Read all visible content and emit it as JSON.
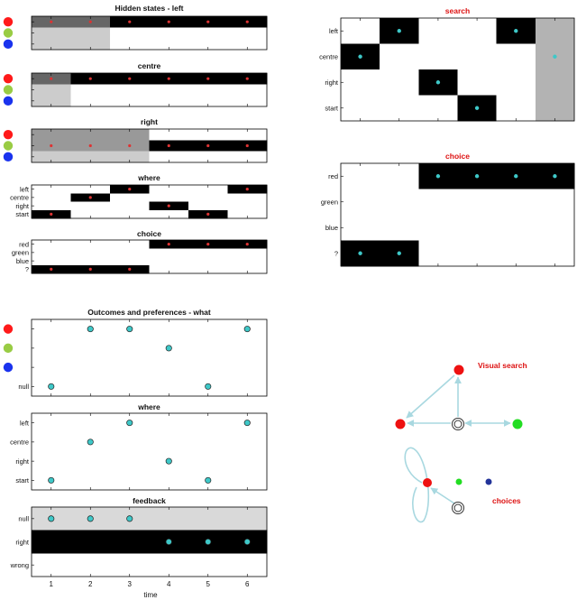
{
  "chart_data": [
    {
      "id": "hidden_left",
      "type": "heatmap",
      "title": "Hidden states - left",
      "x": [
        1,
        2,
        3,
        4,
        5,
        6
      ],
      "rows": [
        "red",
        "green",
        "blue"
      ],
      "row_markers": [
        "#ff1a1a",
        "#99cc44",
        "#1a33ee"
      ],
      "xlim": [
        0.5,
        6.5
      ],
      "values": [
        [
          0.6,
          0.6,
          1,
          1,
          1,
          1
        ],
        [
          0.2,
          0.2,
          0,
          0,
          0,
          0
        ],
        [
          0.2,
          0.2,
          0,
          0,
          0,
          0
        ]
      ],
      "dots": [
        [
          1,
          0
        ],
        [
          2,
          0
        ],
        [
          3,
          0
        ],
        [
          4,
          0
        ],
        [
          5,
          0
        ],
        [
          6,
          0
        ]
      ],
      "dot_color": "#d33"
    },
    {
      "id": "hidden_centre",
      "type": "heatmap",
      "title": "centre",
      "x": [
        1,
        2,
        3,
        4,
        5,
        6
      ],
      "rows": [
        "red",
        "green",
        "blue"
      ],
      "row_markers": [
        "#ff1a1a",
        "#99cc44",
        "#1a33ee"
      ],
      "xlim": [
        0.5,
        6.5
      ],
      "values": [
        [
          0.6,
          1,
          1,
          1,
          1,
          1
        ],
        [
          0.2,
          0,
          0,
          0,
          0,
          0
        ],
        [
          0.2,
          0,
          0,
          0,
          0,
          0
        ]
      ],
      "dots": [
        [
          1,
          0
        ],
        [
          2,
          0
        ],
        [
          3,
          0
        ],
        [
          4,
          0
        ],
        [
          5,
          0
        ],
        [
          6,
          0
        ]
      ],
      "dot_color": "#d33"
    },
    {
      "id": "hidden_right",
      "type": "heatmap",
      "title": "right",
      "x": [
        1,
        2,
        3,
        4,
        5,
        6
      ],
      "rows": [
        "red",
        "green",
        "blue"
      ],
      "row_markers": [
        "#ff1a1a",
        "#99cc44",
        "#1a33ee"
      ],
      "xlim": [
        0.5,
        6.5
      ],
      "values": [
        [
          0.4,
          0.4,
          0.4,
          0,
          0,
          0
        ],
        [
          0.4,
          0.4,
          0.4,
          1,
          1,
          1
        ],
        [
          0.2,
          0.2,
          0.2,
          0,
          0,
          0
        ]
      ],
      "dots": [
        [
          1,
          1
        ],
        [
          2,
          1
        ],
        [
          3,
          1
        ],
        [
          4,
          1
        ],
        [
          5,
          1
        ],
        [
          6,
          1
        ]
      ],
      "dot_color": "#d33"
    },
    {
      "id": "hidden_where",
      "type": "heatmap",
      "title": "where",
      "x": [
        1,
        2,
        3,
        4,
        5,
        6
      ],
      "rows": [
        "left",
        "centre",
        "right",
        "start"
      ],
      "xlim": [
        0.5,
        6.5
      ],
      "values": [
        [
          0,
          0,
          1,
          0,
          0,
          1
        ],
        [
          0,
          1,
          0,
          0,
          0,
          0
        ],
        [
          0,
          0,
          0,
          1,
          0,
          0
        ],
        [
          1,
          0,
          0,
          0,
          1,
          0
        ]
      ],
      "dots": [
        [
          1,
          3
        ],
        [
          2,
          1
        ],
        [
          3,
          0
        ],
        [
          4,
          2
        ],
        [
          5,
          3
        ],
        [
          6,
          0
        ]
      ],
      "dot_color": "#d33"
    },
    {
      "id": "hidden_choice",
      "type": "heatmap",
      "title": "choice",
      "x": [
        1,
        2,
        3,
        4,
        5,
        6
      ],
      "rows": [
        "red",
        "green",
        "blue",
        "?"
      ],
      "xlim": [
        0.5,
        6.5
      ],
      "values": [
        [
          0,
          0,
          0,
          1,
          1,
          1
        ],
        [
          0,
          0,
          0,
          0,
          0,
          0
        ],
        [
          0,
          0,
          0,
          0,
          0,
          0
        ],
        [
          1,
          1,
          1,
          0,
          0,
          0
        ]
      ],
      "dots": [
        [
          1,
          3
        ],
        [
          2,
          3
        ],
        [
          3,
          3
        ],
        [
          4,
          0
        ],
        [
          5,
          0
        ],
        [
          6,
          0
        ]
      ],
      "dot_color": "#d33"
    },
    {
      "id": "outcomes_what",
      "type": "scatter",
      "title": "Outcomes and preferences - what",
      "x": [
        1,
        2,
        3,
        4,
        5,
        6
      ],
      "rows": [
        "red",
        "green",
        "blue",
        "null"
      ],
      "row_markers": [
        "#ff1a1a",
        "#99cc44",
        "#1a33ee",
        ""
      ],
      "xlim": [
        0.5,
        6.5
      ],
      "values": [
        [
          0,
          0,
          0,
          0,
          0,
          0
        ],
        [
          0,
          0,
          0,
          0,
          0,
          0
        ],
        [
          0,
          0,
          0,
          0,
          0,
          0
        ],
        [
          0,
          0,
          0,
          0,
          0,
          0
        ]
      ],
      "dots": [
        [
          1,
          3
        ],
        [
          2,
          0
        ],
        [
          3,
          0
        ],
        [
          4,
          1
        ],
        [
          5,
          3
        ],
        [
          6,
          0
        ]
      ],
      "dot_color": "#3ec8c8"
    },
    {
      "id": "outcomes_where",
      "type": "scatter",
      "title": "where",
      "x": [
        1,
        2,
        3,
        4,
        5,
        6
      ],
      "rows": [
        "left",
        "centre",
        "right",
        "start"
      ],
      "xlim": [
        0.5,
        6.5
      ],
      "values": [
        [
          0,
          0,
          0,
          0,
          0,
          0
        ],
        [
          0,
          0,
          0,
          0,
          0,
          0
        ],
        [
          0,
          0,
          0,
          0,
          0,
          0
        ],
        [
          0,
          0,
          0,
          0,
          0,
          0
        ]
      ],
      "dots": [
        [
          1,
          3
        ],
        [
          2,
          1
        ],
        [
          3,
          0
        ],
        [
          4,
          2
        ],
        [
          5,
          3
        ],
        [
          6,
          0
        ]
      ],
      "dot_color": "#3ec8c8"
    },
    {
      "id": "outcomes_feedback",
      "type": "heatmap",
      "title": "feedback",
      "x": [
        1,
        2,
        3,
        4,
        5,
        6
      ],
      "rows": [
        "null",
        "right",
        "wrong"
      ],
      "xlim": [
        0.5,
        6.5
      ],
      "values": [
        [
          0.15,
          0.15,
          0.15,
          0.15,
          0.15,
          0.15
        ],
        [
          1,
          1,
          1,
          1,
          1,
          1
        ],
        [
          0,
          0,
          0,
          0,
          0,
          0
        ]
      ],
      "dots": [
        [
          1,
          0
        ],
        [
          2,
          0
        ],
        [
          3,
          0
        ],
        [
          4,
          1
        ],
        [
          5,
          1
        ],
        [
          6,
          1
        ]
      ],
      "dot_color": "#3ec8c8",
      "xticks": [
        "1",
        "2",
        "3",
        "4",
        "5",
        "6"
      ],
      "xlabel": "time"
    },
    {
      "id": "search",
      "type": "heatmap",
      "title": "search",
      "title_color": "#d11",
      "x": [
        1,
        2,
        3,
        4,
        5,
        6
      ],
      "rows": [
        "left",
        "centre",
        "right",
        "start"
      ],
      "xlim": [
        0.5,
        6.5
      ],
      "values": [
        [
          0,
          1,
          0,
          0,
          1,
          0.3
        ],
        [
          1,
          0,
          0,
          0,
          0,
          0.3
        ],
        [
          0,
          0,
          1,
          0,
          0,
          0.3
        ],
        [
          0,
          0,
          0,
          1,
          0,
          0.3
        ]
      ],
      "dots": [
        [
          1,
          1
        ],
        [
          2,
          0
        ],
        [
          3,
          2
        ],
        [
          4,
          3
        ],
        [
          5,
          0
        ],
        [
          6,
          1
        ]
      ],
      "dot_color": "#3ec8c8"
    },
    {
      "id": "choice",
      "type": "heatmap",
      "title": "choice",
      "title_color": "#d11",
      "x": [
        1,
        2,
        3,
        4,
        5,
        6
      ],
      "rows": [
        "red",
        "green",
        "blue",
        "?"
      ],
      "xlim": [
        0.5,
        6.5
      ],
      "values": [
        [
          0,
          0,
          1,
          1,
          1,
          1
        ],
        [
          0,
          0,
          0,
          0,
          0,
          0
        ],
        [
          0,
          0,
          0,
          0,
          0,
          0
        ],
        [
          1,
          1,
          0,
          0,
          0,
          0
        ]
      ],
      "dots": [
        [
          1,
          3
        ],
        [
          2,
          3
        ],
        [
          3,
          0
        ],
        [
          4,
          0
        ],
        [
          5,
          0
        ],
        [
          6,
          0
        ]
      ],
      "dot_color": "#3ec8c8"
    }
  ],
  "graph": {
    "labels": [
      "Visual search",
      "choices"
    ],
    "label_color": "#d11",
    "edge_color": "#a8d8e0",
    "node_colors": {
      "red": "#ee1111",
      "green": "#22dd22",
      "blue": "#223399"
    }
  }
}
